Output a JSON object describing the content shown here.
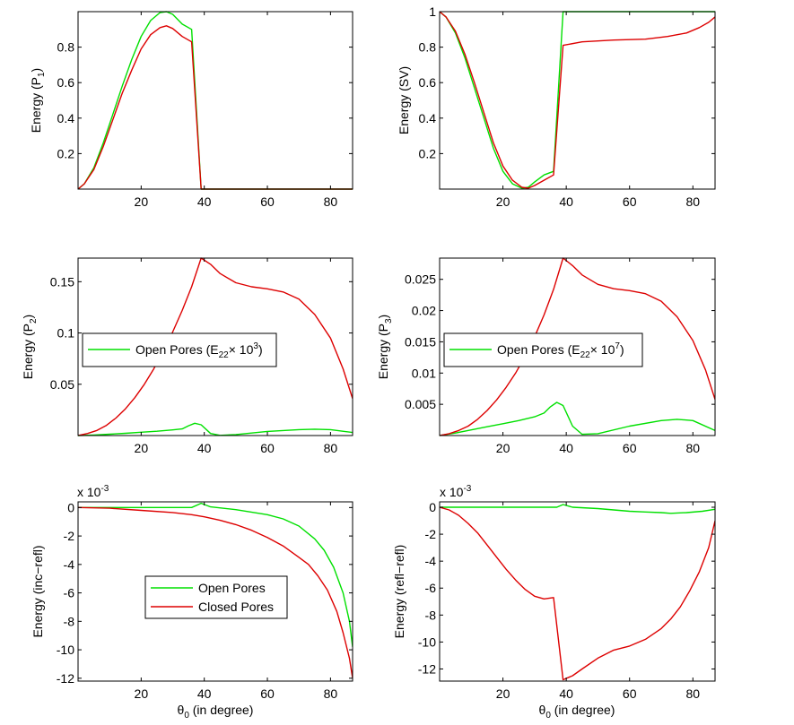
{
  "figure": {
    "xlabel_main": "θ",
    "xlabel_sub": "0",
    "xlabel_rest": " (in degree)"
  },
  "legend": {
    "open_prefix": "Open Pores (E",
    "open_sub": "22",
    "open_times": "× 10",
    "exp_p2": "3",
    "exp_p3": "7",
    "close": ")",
    "open_label": "Open Pores",
    "closed_label": "Closed Pores"
  },
  "colors": {
    "open": "#00e000",
    "closed": "#dd0000"
  },
  "chart_data": [
    {
      "id": "p1",
      "type": "line",
      "ylabel": "Energy (P",
      "ylabel_sub": "1",
      "ylabel_end": ")",
      "xlim": [
        0,
        87
      ],
      "ylim": [
        0,
        1.0
      ],
      "xticks": [
        "20",
        "40",
        "60",
        "80"
      ],
      "xtick_values": [
        20,
        40,
        60,
        80
      ],
      "yticks": [
        "0.2",
        "0.4",
        "0.6",
        "0.8"
      ],
      "ytick_values": [
        0.2,
        0.4,
        0.6,
        0.8
      ],
      "series": [
        {
          "name": "Open Pores",
          "color": "open",
          "x": [
            0,
            2,
            5,
            8,
            11,
            14,
            17,
            20,
            23,
            26,
            28,
            30,
            33,
            36,
            39,
            45,
            60,
            87
          ],
          "y": [
            0,
            0.03,
            0.12,
            0.26,
            0.42,
            0.58,
            0.73,
            0.86,
            0.95,
            0.995,
            1.0,
            0.985,
            0.93,
            0.9,
            0,
            0,
            0,
            0
          ]
        },
        {
          "name": "Closed Pores",
          "color": "closed",
          "x": [
            0,
            2,
            5,
            8,
            11,
            14,
            17,
            20,
            23,
            26,
            28,
            30,
            33,
            36,
            39,
            45,
            60,
            87
          ],
          "y": [
            0,
            0.03,
            0.11,
            0.24,
            0.39,
            0.54,
            0.67,
            0.79,
            0.87,
            0.91,
            0.92,
            0.905,
            0.86,
            0.83,
            0,
            0,
            0,
            0
          ]
        }
      ]
    },
    {
      "id": "sv",
      "type": "line",
      "ylabel": "Energy (SV)",
      "ylabel_sub": "",
      "ylabel_end": "",
      "xlim": [
        0,
        87
      ],
      "ylim": [
        0,
        1.0
      ],
      "xticks": [
        "20",
        "40",
        "60",
        "80"
      ],
      "xtick_values": [
        20,
        40,
        60,
        80
      ],
      "yticks": [
        "0.2",
        "0.4",
        "0.6",
        "0.8",
        "1"
      ],
      "ytick_values": [
        0.2,
        0.4,
        0.6,
        0.8,
        1.0
      ],
      "series": [
        {
          "name": "Open Pores",
          "color": "open",
          "x": [
            0,
            2,
            5,
            8,
            11,
            14,
            17,
            20,
            23,
            26,
            28,
            30,
            33,
            36,
            39,
            45,
            60,
            87
          ],
          "y": [
            1.0,
            0.97,
            0.88,
            0.74,
            0.57,
            0.4,
            0.23,
            0.1,
            0.03,
            0.005,
            0.01,
            0.04,
            0.08,
            0.1,
            1.0,
            1.0,
            1.0,
            1.0
          ]
        },
        {
          "name": "Closed Pores",
          "color": "closed",
          "x": [
            0,
            2,
            5,
            8,
            11,
            14,
            17,
            20,
            23,
            26,
            28,
            30,
            33,
            36,
            39,
            45,
            55,
            65,
            72,
            78,
            82,
            85,
            87
          ],
          "y": [
            1.0,
            0.97,
            0.89,
            0.76,
            0.6,
            0.43,
            0.26,
            0.13,
            0.05,
            0.01,
            0.005,
            0.02,
            0.05,
            0.08,
            0.81,
            0.83,
            0.84,
            0.845,
            0.86,
            0.88,
            0.91,
            0.94,
            0.97
          ]
        }
      ]
    },
    {
      "id": "p2",
      "type": "line",
      "ylabel": "Energy (P",
      "ylabel_sub": "2",
      "ylabel_end": ")",
      "xlim": [
        0,
        87
      ],
      "ylim": [
        0,
        0.173
      ],
      "xticks": [
        "20",
        "40",
        "60",
        "80"
      ],
      "xtick_values": [
        20,
        40,
        60,
        80
      ],
      "yticks": [
        "0.05",
        "0.1",
        "0.15"
      ],
      "ytick_values": [
        0.05,
        0.1,
        0.15
      ],
      "legend_exp": "p2",
      "series": [
        {
          "name": "Open Pores",
          "color": "open",
          "x": [
            0,
            5,
            10,
            15,
            20,
            25,
            30,
            33,
            35,
            37,
            39,
            42,
            45,
            50,
            60,
            70,
            75,
            80,
            87
          ],
          "y": [
            0,
            0.0005,
            0.0013,
            0.0022,
            0.0032,
            0.0042,
            0.0055,
            0.0065,
            0.0095,
            0.012,
            0.0105,
            0.002,
            0.0002,
            0.001,
            0.004,
            0.0058,
            0.0062,
            0.0058,
            0.003
          ]
        },
        {
          "name": "Closed Pores",
          "color": "closed",
          "x": [
            0,
            3,
            6,
            9,
            12,
            15,
            18,
            21,
            24,
            27,
            30,
            33,
            36,
            39,
            42,
            45,
            50,
            55,
            60,
            65,
            70,
            75,
            80,
            84,
            87
          ],
          "y": [
            0,
            0.002,
            0.005,
            0.01,
            0.017,
            0.026,
            0.037,
            0.05,
            0.065,
            0.082,
            0.101,
            0.122,
            0.145,
            0.173,
            0.167,
            0.158,
            0.149,
            0.145,
            0.143,
            0.14,
            0.133,
            0.118,
            0.095,
            0.065,
            0.036
          ]
        }
      ]
    },
    {
      "id": "p3",
      "type": "line",
      "ylabel": "Energy (P",
      "ylabel_sub": "3",
      "ylabel_end": ")",
      "xlim": [
        0,
        87
      ],
      "ylim": [
        0,
        0.0284
      ],
      "xticks": [
        "20",
        "40",
        "60",
        "80"
      ],
      "xtick_values": [
        20,
        40,
        60,
        80
      ],
      "yticks": [
        "0.005",
        "0.01",
        "0.015",
        "0.02",
        "0.025"
      ],
      "ytick_values": [
        0.005,
        0.01,
        0.015,
        0.02,
        0.025
      ],
      "legend_exp": "p3",
      "series": [
        {
          "name": "Open Pores",
          "color": "open",
          "x": [
            0,
            5,
            10,
            15,
            20,
            25,
            30,
            33,
            35,
            37,
            39,
            42,
            45,
            50,
            60,
            70,
            75,
            80,
            87
          ],
          "y": [
            0,
            0.0004,
            0.0009,
            0.0014,
            0.0019,
            0.0024,
            0.003,
            0.0036,
            0.0046,
            0.0053,
            0.0048,
            0.0015,
            0.0002,
            0.0003,
            0.0015,
            0.0024,
            0.0026,
            0.0024,
            0.0008
          ]
        },
        {
          "name": "Closed Pores",
          "color": "closed",
          "x": [
            0,
            3,
            6,
            9,
            12,
            15,
            18,
            21,
            24,
            27,
            30,
            33,
            36,
            39,
            42,
            45,
            50,
            55,
            60,
            65,
            70,
            75,
            80,
            84,
            87
          ],
          "y": [
            0,
            0.0003,
            0.0008,
            0.0015,
            0.0026,
            0.004,
            0.0057,
            0.0077,
            0.01,
            0.0127,
            0.0158,
            0.0193,
            0.0234,
            0.0284,
            0.0272,
            0.0257,
            0.0242,
            0.0235,
            0.0232,
            0.0227,
            0.0215,
            0.019,
            0.0152,
            0.0105,
            0.0058
          ]
        }
      ]
    },
    {
      "id": "inc",
      "type": "line",
      "ylabel": "Energy (inc−refl)",
      "ylabel_sub": "",
      "ylabel_end": "",
      "scale_label": "x 10",
      "scale_exp": "-3",
      "xlim": [
        0,
        87
      ],
      "ylim": [
        -12.2,
        0.4
      ],
      "xticks": [
        "20",
        "40",
        "60",
        "80"
      ],
      "xtick_values": [
        20,
        40,
        60,
        80
      ],
      "yticks": [
        "0",
        "-2",
        "-4",
        "-6",
        "-8",
        "-10",
        "-12"
      ],
      "ytick_values": [
        0,
        -2,
        -4,
        -6,
        -8,
        -10,
        -12
      ],
      "series": [
        {
          "name": "Open Pores",
          "color": "open",
          "x": [
            0,
            10,
            20,
            30,
            36,
            39,
            42,
            50,
            60,
            65,
            70,
            75,
            78,
            81,
            84,
            86,
            87
          ],
          "y": [
            0,
            0,
            0,
            0,
            0,
            0.3,
            0.05,
            -0.15,
            -0.5,
            -0.8,
            -1.3,
            -2.2,
            -3.0,
            -4.2,
            -6.0,
            -8.0,
            -9.8
          ]
        },
        {
          "name": "Closed Pores",
          "color": "closed",
          "x": [
            0,
            10,
            20,
            30,
            36,
            40,
            45,
            50,
            55,
            60,
            65,
            70,
            73,
            76,
            79,
            82,
            84,
            86,
            87
          ],
          "y": [
            0,
            -0.05,
            -0.2,
            -0.35,
            -0.5,
            -0.65,
            -0.9,
            -1.2,
            -1.6,
            -2.1,
            -2.7,
            -3.5,
            -4.0,
            -4.8,
            -5.8,
            -7.3,
            -8.8,
            -10.6,
            -12.0
          ]
        }
      ]
    },
    {
      "id": "refl",
      "type": "line",
      "ylabel": "Energy (refl−refl)",
      "ylabel_sub": "",
      "ylabel_end": "",
      "scale_label": "x 10",
      "scale_exp": "-3",
      "xlim": [
        0,
        87
      ],
      "ylim": [
        -12.9,
        0.4
      ],
      "xticks": [
        "20",
        "40",
        "60",
        "80"
      ],
      "xtick_values": [
        20,
        40,
        60,
        80
      ],
      "yticks": [
        "0",
        "-2",
        "-4",
        "-6",
        "-8",
        "-10",
        "-12"
      ],
      "ytick_values": [
        0,
        -2,
        -4,
        -6,
        -8,
        -10,
        -12
      ],
      "series": [
        {
          "name": "Open Pores",
          "color": "open",
          "x": [
            0,
            20,
            30,
            37,
            39,
            42,
            50,
            60,
            65,
            70,
            73,
            78,
            83,
            87
          ],
          "y": [
            0,
            0,
            0,
            0,
            0.2,
            0,
            -0.1,
            -0.3,
            -0.35,
            -0.4,
            -0.45,
            -0.4,
            -0.3,
            -0.15
          ]
        },
        {
          "name": "Closed Pores",
          "color": "closed",
          "x": [
            0,
            3,
            6,
            9,
            12,
            15,
            18,
            21,
            24,
            27,
            30,
            33,
            36,
            39,
            42,
            45,
            50,
            55,
            60,
            65,
            70,
            73,
            76,
            79,
            82,
            85,
            87
          ],
          "y": [
            0,
            -0.2,
            -0.6,
            -1.2,
            -1.9,
            -2.8,
            -3.7,
            -4.6,
            -5.4,
            -6.1,
            -6.6,
            -6.8,
            -6.7,
            -12.8,
            -12.5,
            -12.0,
            -11.2,
            -10.6,
            -10.3,
            -9.8,
            -9.0,
            -8.3,
            -7.4,
            -6.2,
            -4.8,
            -3.0,
            -1.0
          ]
        }
      ]
    }
  ]
}
